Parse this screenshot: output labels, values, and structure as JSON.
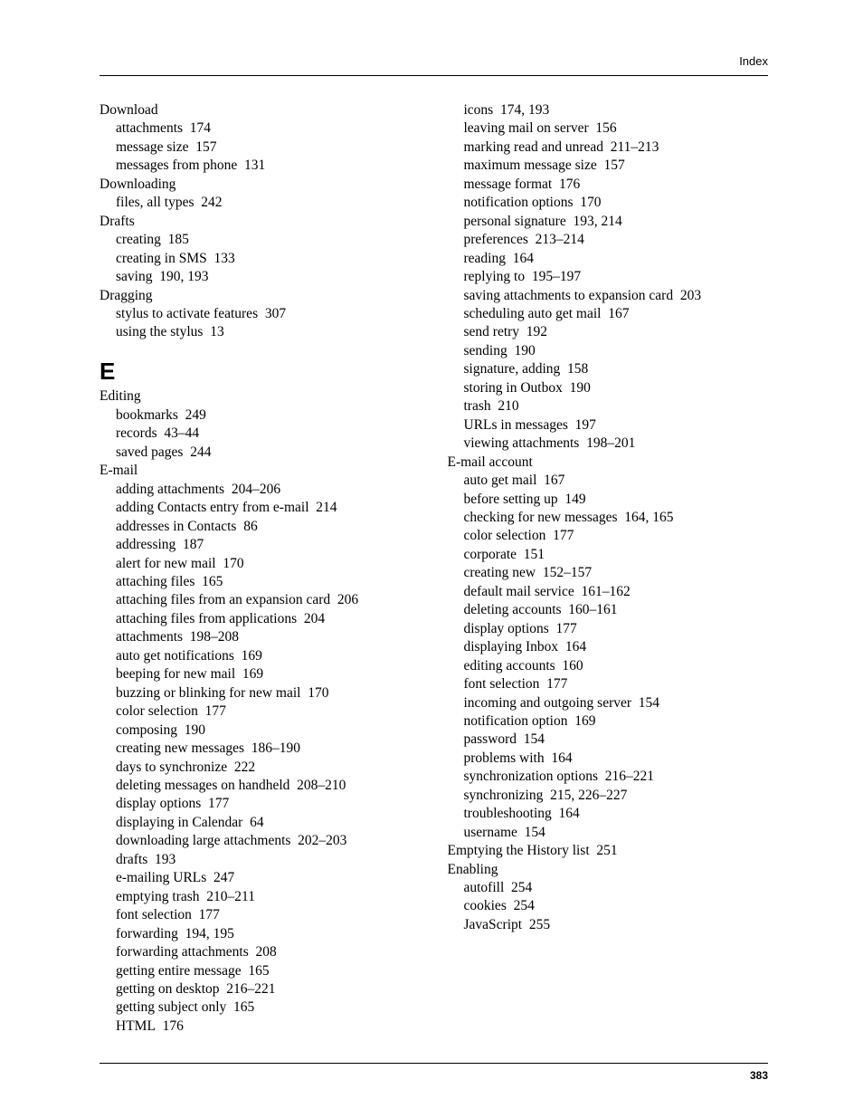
{
  "header": {
    "label": "Index"
  },
  "footer": {
    "page_number": "383"
  },
  "section_letter": "E",
  "topics": [
    {
      "title": "Download",
      "subs": [
        {
          "label": "attachments",
          "pages": "174"
        },
        {
          "label": "message size",
          "pages": "157"
        },
        {
          "label": "messages from phone",
          "pages": "131"
        }
      ]
    },
    {
      "title": "Downloading",
      "subs": [
        {
          "label": "files, all types",
          "pages": "242"
        }
      ]
    },
    {
      "title": "Drafts",
      "subs": [
        {
          "label": "creating",
          "pages": "185"
        },
        {
          "label": "creating in SMS",
          "pages": "133"
        },
        {
          "label": "saving",
          "pages": "190, 193"
        }
      ]
    },
    {
      "title": "Dragging",
      "subs": [
        {
          "label": "stylus to activate features",
          "pages": "307"
        },
        {
          "label": "using the stylus",
          "pages": "13"
        }
      ]
    }
  ],
  "topics_after_letter": [
    {
      "title": "Editing",
      "subs": [
        {
          "label": "bookmarks",
          "pages": "249"
        },
        {
          "label": "records",
          "pages": "43–44"
        },
        {
          "label": "saved pages",
          "pages": "244"
        }
      ]
    },
    {
      "title": "E-mail",
      "subs": [
        {
          "label": "adding attachments",
          "pages": "204–206"
        },
        {
          "label": "adding Contacts entry from e-mail",
          "pages": "214"
        },
        {
          "label": "addresses in Contacts",
          "pages": "86"
        },
        {
          "label": "addressing",
          "pages": "187"
        },
        {
          "label": "alert for new mail",
          "pages": "170"
        },
        {
          "label": "attaching files",
          "pages": "165"
        },
        {
          "label": "attaching files from an expansion card",
          "pages": "206",
          "wrap": true
        },
        {
          "label": "attaching files from applications",
          "pages": "204"
        },
        {
          "label": "attachments",
          "pages": "198–208"
        },
        {
          "label": "auto get notifications",
          "pages": "169"
        },
        {
          "label": "beeping for new mail",
          "pages": "169"
        },
        {
          "label": "buzzing or blinking for new mail",
          "pages": "170"
        },
        {
          "label": "color selection",
          "pages": "177"
        },
        {
          "label": "composing",
          "pages": "190"
        },
        {
          "label": "creating new messages",
          "pages": "186–190"
        },
        {
          "label": "days to synchronize",
          "pages": "222"
        },
        {
          "label": "deleting messages on handheld",
          "pages": "208–210"
        },
        {
          "label": "display options",
          "pages": "177"
        },
        {
          "label": "displaying in Calendar",
          "pages": "64"
        },
        {
          "label": "downloading large attachments",
          "pages": "202–203"
        },
        {
          "label": "drafts",
          "pages": "193"
        },
        {
          "label": "e-mailing URLs",
          "pages": "247"
        },
        {
          "label": "emptying trash",
          "pages": "210–211"
        },
        {
          "label": "font selection",
          "pages": "177"
        },
        {
          "label": "forwarding",
          "pages": "194, 195"
        },
        {
          "label": "forwarding attachments",
          "pages": "208"
        },
        {
          "label": "getting entire message",
          "pages": "165"
        },
        {
          "label": "getting on desktop",
          "pages": "216–221"
        },
        {
          "label": "getting subject only",
          "pages": "165"
        },
        {
          "label": "HTML",
          "pages": "176"
        },
        {
          "label": "icons",
          "pages": "174, 193"
        },
        {
          "label": "leaving mail on server",
          "pages": "156"
        },
        {
          "label": "marking read and unread",
          "pages": "211–213"
        },
        {
          "label": "maximum message size",
          "pages": "157"
        },
        {
          "label": "message format",
          "pages": "176"
        },
        {
          "label": "notification options",
          "pages": "170"
        },
        {
          "label": "personal signature",
          "pages": "193, 214"
        },
        {
          "label": "preferences",
          "pages": "213–214"
        },
        {
          "label": "reading",
          "pages": "164"
        },
        {
          "label": "replying to",
          "pages": "195–197"
        },
        {
          "label": "saving attachments to expansion card",
          "pages": "203",
          "wrap": true
        },
        {
          "label": "scheduling auto get mail",
          "pages": "167"
        },
        {
          "label": "send retry",
          "pages": "192"
        },
        {
          "label": "sending",
          "pages": "190"
        },
        {
          "label": "signature, adding",
          "pages": "158"
        },
        {
          "label": "storing in Outbox",
          "pages": "190"
        },
        {
          "label": "trash",
          "pages": "210"
        },
        {
          "label": "URLs in messages",
          "pages": "197"
        },
        {
          "label": "viewing attachments",
          "pages": "198–201"
        }
      ]
    },
    {
      "title": "E-mail account",
      "subs": [
        {
          "label": "auto get mail",
          "pages": "167"
        },
        {
          "label": "before setting up",
          "pages": "149"
        },
        {
          "label": "checking for new messages",
          "pages": "164, 165"
        },
        {
          "label": "color selection",
          "pages": "177"
        },
        {
          "label": "corporate",
          "pages": "151"
        },
        {
          "label": "creating new",
          "pages": "152–157"
        },
        {
          "label": "default mail service",
          "pages": "161–162"
        },
        {
          "label": "deleting accounts",
          "pages": "160–161"
        },
        {
          "label": "display options",
          "pages": "177"
        },
        {
          "label": "displaying Inbox",
          "pages": "164"
        },
        {
          "label": "editing accounts",
          "pages": "160"
        },
        {
          "label": "font selection",
          "pages": "177"
        },
        {
          "label": "incoming and outgoing server",
          "pages": "154"
        },
        {
          "label": "notification option",
          "pages": "169"
        },
        {
          "label": "password",
          "pages": "154"
        },
        {
          "label": "problems with",
          "pages": "164"
        },
        {
          "label": "synchronization options",
          "pages": "216–221"
        },
        {
          "label": "synchronizing",
          "pages": "215, 226–227"
        },
        {
          "label": "troubleshooting",
          "pages": "164"
        },
        {
          "label": "username",
          "pages": "154"
        }
      ]
    },
    {
      "title": "Emptying the History list",
      "pages": "251",
      "subs": []
    },
    {
      "title": "Enabling",
      "subs": [
        {
          "label": "autofill",
          "pages": "254"
        },
        {
          "label": "cookies",
          "pages": "254"
        },
        {
          "label": "JavaScript",
          "pages": "255"
        }
      ]
    }
  ]
}
